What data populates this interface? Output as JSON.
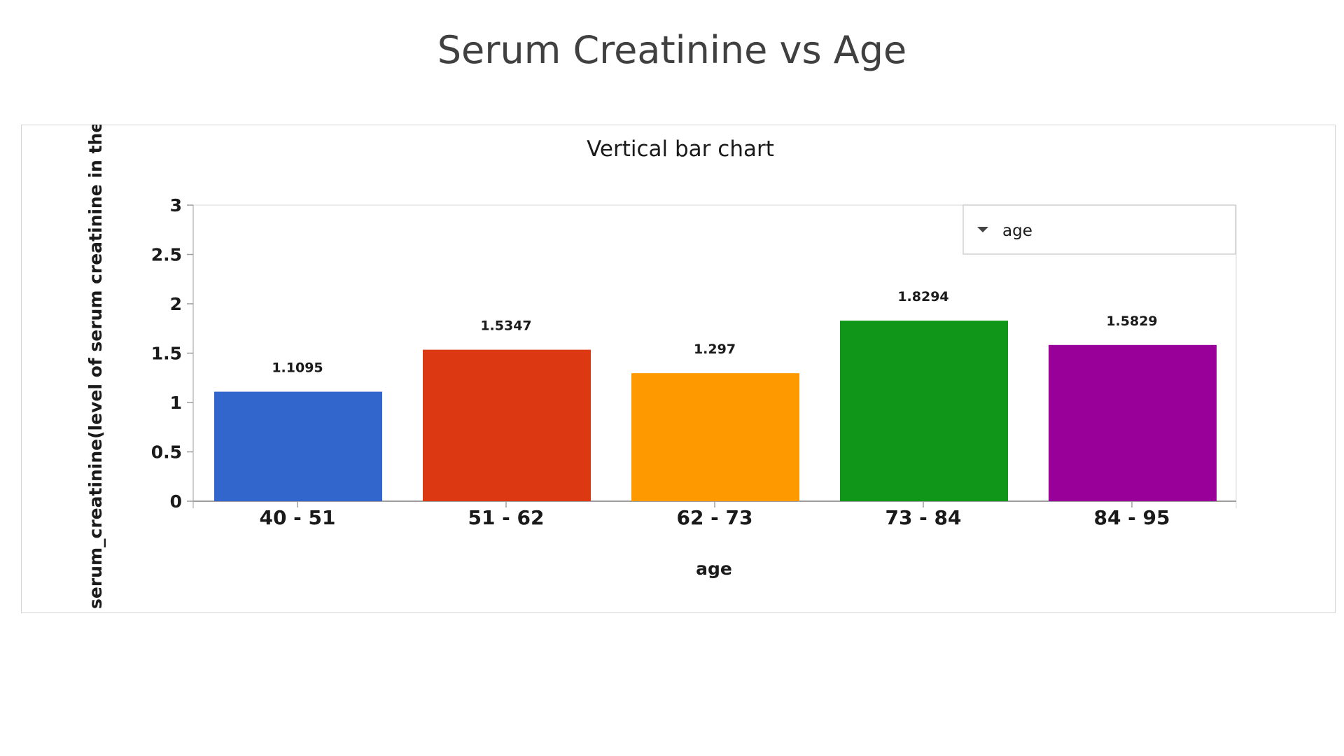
{
  "slide": {
    "title": "Serum Creatinine vs Age"
  },
  "chart_data": {
    "type": "bar",
    "title": "Vertical bar chart",
    "xlabel": "age",
    "ylabel": "serum_creatinine(level of serum creatinine in the blood",
    "categories": [
      "40 - 51",
      "51 - 62",
      "62 - 73",
      "73 - 84",
      "84 - 95"
    ],
    "values": [
      1.1095,
      1.5347,
      1.297,
      1.8294,
      1.5829
    ],
    "value_labels": [
      "1.1095",
      "1.5347",
      "1.297",
      "1.8294",
      "1.5829"
    ],
    "colors": [
      "#3366cc",
      "#dc3912",
      "#ff9900",
      "#109618",
      "#990099"
    ],
    "ylim": [
      0,
      3
    ],
    "yticks": [
      "0",
      "0.5",
      "1",
      "1.5",
      "2",
      "2.5",
      "3"
    ],
    "legend": {
      "title": "age",
      "position": "top-right",
      "icon": "caret-down-icon"
    },
    "grid": false
  }
}
